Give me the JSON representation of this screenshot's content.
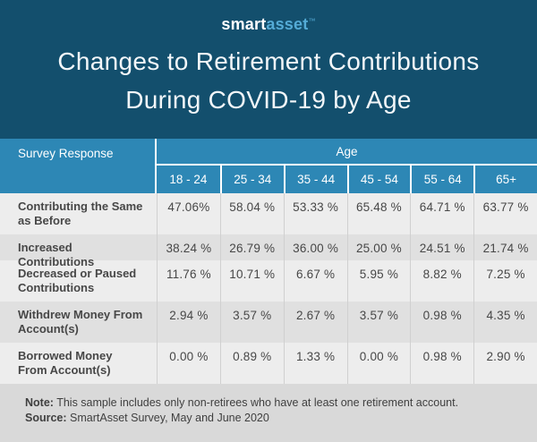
{
  "colors": {
    "banner_navy": "#134f6d",
    "header_blue": "#2d87b5",
    "logo_accent_blue": "#54abd6",
    "row_light": "#ededed",
    "row_dark": "#e0e0e0",
    "footer_gray": "#d9d9d9",
    "text_dark": "#474747"
  },
  "logo": {
    "part1": "smart",
    "part2": "asset",
    "trademark": "™"
  },
  "title": {
    "lines": [
      "Changes to Retirement Contributions",
      "During COVID-19 by Age"
    ]
  },
  "table": {
    "corner_header": "Survey Response",
    "group_header": "Age",
    "age_columns": [
      "18 - 24",
      "25 - 34",
      "35 - 44",
      "45 - 54",
      "55 - 64",
      "65+"
    ],
    "rows": [
      {
        "label": "Contributing the Same as Before",
        "cells": [
          "47.06%",
          "58.04 %",
          "53.33 %",
          "65.48 %",
          "64.71 %",
          "63.77 %"
        ]
      },
      {
        "label": "Increased Contributions",
        "cells": [
          "38.24 %",
          "26.79 %",
          "36.00 %",
          "25.00 %",
          "24.51 %",
          "21.74 %"
        ]
      },
      {
        "label": "Decreased or Paused Contributions",
        "cells": [
          "11.76 %",
          "10.71 %",
          "6.67 %",
          "5.95 %",
          "8.82 %",
          "7.25 %"
        ]
      },
      {
        "label": "Withdrew Money From Account(s)",
        "cells": [
          "2.94 %",
          "3.57 %",
          "2.67 %",
          "3.57 %",
          "0.98 %",
          "4.35 %"
        ]
      },
      {
        "label": "Borrowed Money From Account(s)",
        "cells": [
          "0.00 %",
          "0.89 %",
          "1.33 %",
          "0.00 %",
          "0.98 %",
          "2.90 %"
        ]
      }
    ]
  },
  "footer": {
    "note_label": "Note:",
    "note_text": "This sample includes only non-retirees who have at least one retirement account.",
    "source_label": "Source:",
    "source_text": "SmartAsset Survey, May and June 2020"
  },
  "chart_data": {
    "type": "table",
    "title": "Changes to Retirement Contributions During COVID-19 by Age",
    "row_header": "Survey Response",
    "column_group_header": "Age",
    "categories": [
      "18 - 24",
      "25 - 34",
      "35 - 44",
      "45 - 54",
      "55 - 64",
      "65+"
    ],
    "unit": "%",
    "series": [
      {
        "name": "Contributing the Same as Before",
        "values": [
          47.06,
          58.04,
          53.33,
          65.48,
          64.71,
          63.77
        ]
      },
      {
        "name": "Increased Contributions",
        "values": [
          38.24,
          26.79,
          36.0,
          25.0,
          24.51,
          21.74
        ]
      },
      {
        "name": "Decreased or Paused Contributions",
        "values": [
          11.76,
          10.71,
          6.67,
          5.95,
          8.82,
          7.25
        ]
      },
      {
        "name": "Withdrew Money From Account(s)",
        "values": [
          2.94,
          3.57,
          2.67,
          3.57,
          0.98,
          4.35
        ]
      },
      {
        "name": "Borrowed Money From Account(s)",
        "values": [
          0.0,
          0.89,
          1.33,
          0.0,
          0.98,
          2.9
        ]
      }
    ],
    "note": "This sample includes only non-retirees who have at least one retirement account.",
    "source": "SmartAsset Survey, May and June 2020"
  }
}
